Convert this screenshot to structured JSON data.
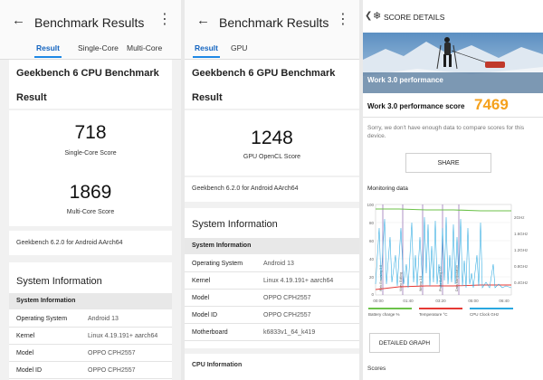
{
  "cpu": {
    "title": "Benchmark Results",
    "tabs": [
      "Result",
      "Single-Core",
      "Multi-Core"
    ],
    "heading": "Geekbench 6 CPU Benchmark",
    "subheading": "Result",
    "single_score": "718",
    "single_label": "Single-Core Score",
    "multi_score": "1869",
    "multi_label": "Multi-Core Score",
    "version": "Geekbench 6.2.0 for Android AArch64",
    "sysinfo_title": "System Information",
    "sysinfo_sub": "System Information",
    "rows": [
      {
        "k": "Operating System",
        "v": "Android 13"
      },
      {
        "k": "Kernel",
        "v": "Linux 4.19.191+ aarch64"
      },
      {
        "k": "Model",
        "v": "OPPO CPH2557"
      },
      {
        "k": "Model ID",
        "v": "OPPO CPH2557"
      }
    ]
  },
  "gpu": {
    "title": "Benchmark Results",
    "tabs": [
      "Result",
      "GPU"
    ],
    "heading": "Geekbench 6 GPU Benchmark",
    "subheading": "Result",
    "score": "1248",
    "score_label": "GPU OpenCL Score",
    "version": "Geekbench 6.2.0 for Android AArch64",
    "sysinfo_title": "System Information",
    "sysinfo_sub": "System Information",
    "rows": [
      {
        "k": "Operating System",
        "v": "Android 13"
      },
      {
        "k": "Kernel",
        "v": "Linux 4.19.191+ aarch64"
      },
      {
        "k": "Model",
        "v": "OPPO CPH2557"
      },
      {
        "k": "Model ID",
        "v": "OPPO CPH2557"
      },
      {
        "k": "Motherboard",
        "v": "k6833v1_64_k419"
      }
    ],
    "cpu_info": "CPU Information"
  },
  "pcmark": {
    "title": "SCORE DETAILS",
    "hero_label": "Work 3.0 performance",
    "score_label": "Work 3.0 performance score",
    "score": "7469",
    "note": "Sorry, we don't have enough data to compare scores for this device.",
    "share": "SHARE",
    "monitoring": "Monitoring data",
    "y_left": [
      "100",
      "80",
      "60",
      "40",
      "20",
      "0"
    ],
    "y_right": [
      "2GHz",
      "1.6GHz",
      "1.2GHz",
      "0.8GHz",
      "0.4GHz"
    ],
    "x_ticks": [
      "00:00",
      "01:40",
      "03:20",
      "05:00",
      "06:40"
    ],
    "markers": [
      "Web Browsing 3.0",
      "Video Editing",
      "Writing 3.0",
      "Photo Editing 3.0",
      "Data Manipulation"
    ],
    "legend": [
      "Battery charge %",
      "Temperature °C",
      "CPU Clock GHz"
    ],
    "colors": {
      "battery": "#6cc24a",
      "temperature": "#e53935",
      "cpu": "#29a8e0"
    },
    "detailed": "DETAILED GRAPH",
    "scores": "Scores"
  }
}
